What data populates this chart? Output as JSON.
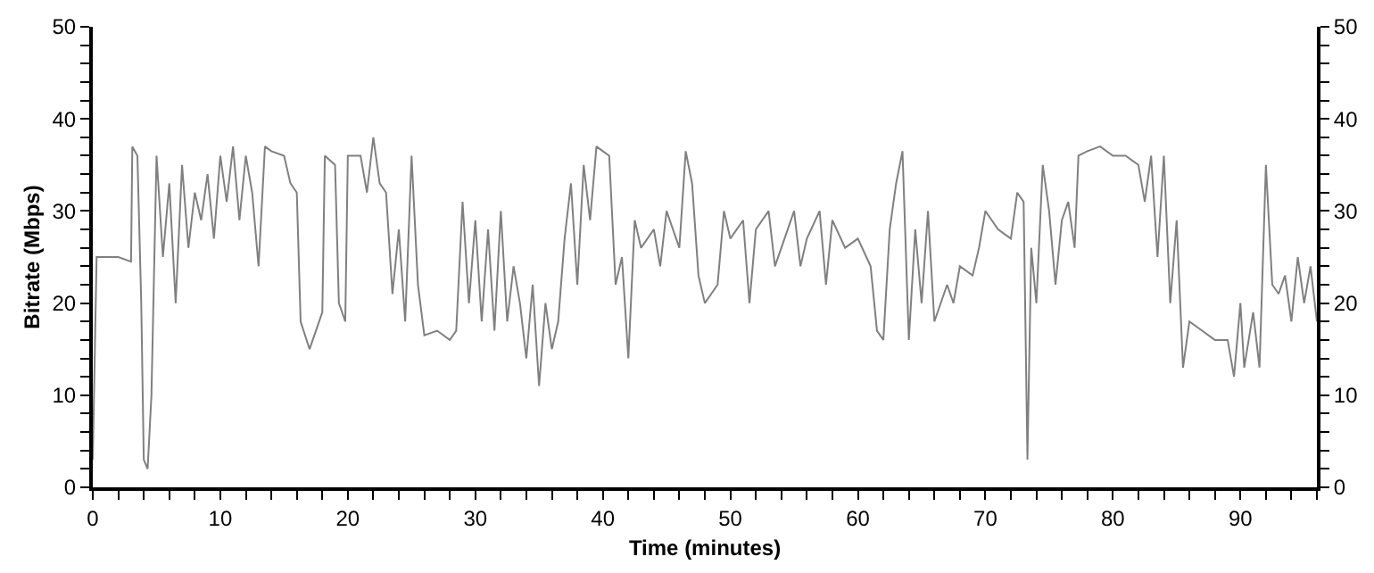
{
  "chart_data": {
    "type": "line",
    "xlabel": "Time (minutes)",
    "ylabel": "Bitrate (Mbps)",
    "x": [
      0,
      0.3,
      2,
      3,
      3.1,
      3.5,
      3.8,
      4,
      4.3,
      4.6,
      5,
      5.5,
      6,
      6.5,
      7,
      7.5,
      8,
      8.5,
      9,
      9.5,
      10,
      10.5,
      11,
      11.5,
      12,
      12.5,
      13,
      13.5,
      14,
      15,
      15.5,
      16,
      16.3,
      17,
      17.5,
      18,
      18.2,
      19,
      19.3,
      19.8,
      20,
      21,
      21.5,
      22,
      22.5,
      23,
      23.5,
      24,
      24.5,
      25,
      25.5,
      26,
      27,
      28,
      28.5,
      29,
      29.5,
      30,
      30.5,
      31,
      31.5,
      32,
      32.5,
      33,
      33.5,
      34,
      34.5,
      35,
      35.5,
      36,
      36.5,
      37,
      37.5,
      38,
      38.5,
      39,
      39.5,
      40,
      40.5,
      41,
      41.5,
      42,
      42.5,
      43,
      44,
      44.5,
      45,
      46,
      46.5,
      47,
      47.5,
      48,
      49,
      49.5,
      50,
      51,
      51.5,
      52,
      53,
      53.5,
      54,
      55,
      55.5,
      56,
      57,
      57.5,
      58,
      59,
      60,
      61,
      61.5,
      62,
      62.5,
      63,
      63.5,
      64,
      64.5,
      65,
      65.5,
      66,
      67,
      67.5,
      68,
      69,
      69.5,
      70,
      70.5,
      71,
      72,
      72.5,
      73,
      73.3,
      73.6,
      74,
      74.5,
      75,
      75.5,
      76,
      76.5,
      77,
      77.3,
      78,
      79,
      80,
      81,
      82,
      82.5,
      83,
      83.5,
      84,
      84.5,
      85,
      85.5,
      86,
      87,
      88,
      89,
      89.5,
      90,
      90.3,
      91,
      91.5,
      92,
      92.5,
      93,
      93.5,
      94,
      94.5,
      95,
      95.5,
      96
    ],
    "series": [
      {
        "color": "#808080",
        "values": [
          3,
          25,
          25,
          24.5,
          37,
          36,
          20,
          3,
          2,
          10,
          36,
          25,
          33,
          20,
          35,
          26,
          32,
          29,
          34,
          27,
          36,
          31,
          37,
          29,
          36,
          32,
          24,
          37,
          36.5,
          36,
          33,
          32,
          18,
          15,
          17,
          19,
          36,
          35,
          20,
          18,
          36,
          36,
          32,
          38,
          33,
          32,
          21,
          28,
          18,
          36,
          22,
          16.5,
          17,
          16,
          17,
          31,
          20,
          29,
          18,
          28,
          17,
          30,
          18,
          24,
          20,
          14,
          22,
          11,
          20,
          15,
          18,
          27,
          33,
          22,
          35,
          29,
          37,
          36.5,
          36,
          22,
          25,
          14,
          29,
          26,
          28,
          24,
          30,
          26,
          36.5,
          33,
          23,
          20,
          22,
          30,
          27,
          29,
          20,
          28,
          30,
          24,
          26,
          30,
          24,
          27,
          30,
          22,
          29,
          26,
          27,
          24,
          17,
          16,
          28,
          33,
          36.5,
          16,
          28,
          20,
          30,
          18,
          22,
          20,
          24,
          23,
          26,
          30,
          29,
          28,
          27,
          32,
          31,
          3,
          26,
          20,
          35,
          30,
          22,
          29,
          31,
          26,
          36,
          36.5,
          37,
          36,
          36,
          35,
          31,
          36,
          25,
          36,
          20,
          29,
          13,
          18,
          17,
          16,
          16,
          12,
          20,
          13,
          19,
          13,
          35,
          22,
          21,
          23,
          18,
          25,
          20,
          24,
          18
        ]
      }
    ],
    "xlim": [
      0,
      96
    ],
    "xticks": [
      0,
      {
        "value": 2,
        "label": null
      },
      {
        "value": 4,
        "label": null
      },
      {
        "value": 6,
        "label": null
      },
      {
        "value": 8,
        "label": null
      },
      10,
      {
        "value": 12,
        "label": null
      },
      {
        "value": 14,
        "label": null
      },
      {
        "value": 16,
        "label": null
      },
      {
        "value": 18,
        "label": null
      },
      20,
      {
        "value": 22,
        "label": null
      },
      {
        "value": 24,
        "label": null
      },
      {
        "value": 26,
        "label": null
      },
      {
        "value": 28,
        "label": null
      },
      30,
      {
        "value": 32,
        "label": null
      },
      {
        "value": 34,
        "label": null
      },
      {
        "value": 36,
        "label": null
      },
      {
        "value": 38,
        "label": null
      },
      40,
      {
        "value": 42,
        "label": null
      },
      {
        "value": 44,
        "label": null
      },
      {
        "value": 46,
        "label": null
      },
      {
        "value": 48,
        "label": null
      },
      50,
      {
        "value": 52,
        "label": null
      },
      {
        "value": 54,
        "label": null
      },
      {
        "value": 56,
        "label": null
      },
      {
        "value": 58,
        "label": null
      },
      60,
      {
        "value": 62,
        "label": null
      },
      {
        "value": 64,
        "label": null
      },
      {
        "value": 66,
        "label": null
      },
      {
        "value": 68,
        "label": null
      },
      70,
      {
        "value": 72,
        "label": null
      },
      {
        "value": 74,
        "label": null
      },
      {
        "value": 76,
        "label": null
      },
      {
        "value": 78,
        "label": null
      },
      80,
      {
        "value": 82,
        "label": null
      },
      {
        "value": 84,
        "label": null
      },
      {
        "value": 86,
        "label": null
      },
      {
        "value": 88,
        "label": null
      },
      90,
      {
        "value": 92,
        "label": null
      },
      {
        "value": 94,
        "label": null
      },
      {
        "value": 96,
        "label": null
      }
    ],
    "ylim": [
      0,
      50
    ],
    "yticks": [
      0,
      {
        "value": 2,
        "label": null
      },
      {
        "value": 4,
        "label": null
      },
      {
        "value": 6,
        "label": null
      },
      {
        "value": 8,
        "label": null
      },
      10,
      {
        "value": 12,
        "label": null
      },
      {
        "value": 14,
        "label": null
      },
      {
        "value": 16,
        "label": null
      },
      {
        "value": 18,
        "label": null
      },
      20,
      {
        "value": 22,
        "label": null
      },
      {
        "value": 24,
        "label": null
      },
      {
        "value": 26,
        "label": null
      },
      {
        "value": 28,
        "label": null
      },
      30,
      {
        "value": 32,
        "label": null
      },
      {
        "value": 34,
        "label": null
      },
      {
        "value": 36,
        "label": null
      },
      {
        "value": 38,
        "label": null
      },
      40,
      {
        "value": 42,
        "label": null
      },
      {
        "value": 44,
        "label": null
      },
      {
        "value": 46,
        "label": null
      },
      {
        "value": 48,
        "label": null
      },
      50
    ],
    "y2lim": [
      0,
      50
    ],
    "y2ticks": [
      0,
      {
        "value": 2,
        "label": null
      },
      {
        "value": 4,
        "label": null
      },
      {
        "value": 6,
        "label": null
      },
      {
        "value": 8,
        "label": null
      },
      10,
      {
        "value": 12,
        "label": null
      },
      {
        "value": 14,
        "label": null
      },
      {
        "value": 16,
        "label": null
      },
      {
        "value": 18,
        "label": null
      },
      20,
      {
        "value": 22,
        "label": null
      },
      {
        "value": 24,
        "label": null
      },
      {
        "value": 26,
        "label": null
      },
      {
        "value": 28,
        "label": null
      },
      30,
      {
        "value": 32,
        "label": null
      },
      {
        "value": 34,
        "label": null
      },
      {
        "value": 36,
        "label": null
      },
      {
        "value": 38,
        "label": null
      },
      40,
      {
        "value": 42,
        "label": null
      },
      {
        "value": 44,
        "label": null
      },
      {
        "value": 46,
        "label": null
      },
      {
        "value": 48,
        "label": null
      },
      50
    ],
    "grid": false,
    "legend": false,
    "marker": "none",
    "line_style": "solid"
  }
}
